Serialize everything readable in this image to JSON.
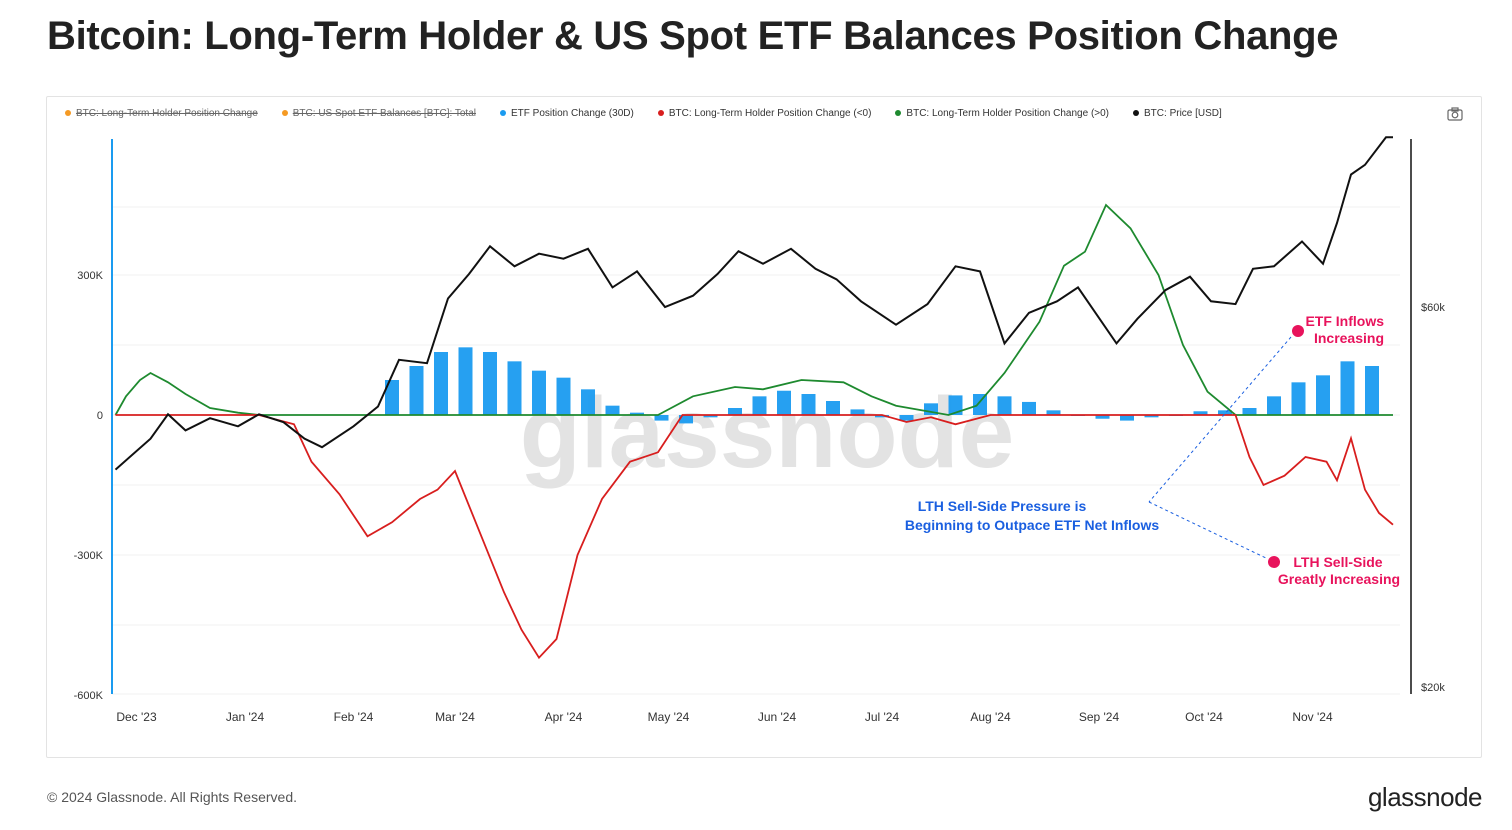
{
  "title": "Bitcoin: Long-Term Holder & US Spot ETF Balances Position Change",
  "legend": [
    {
      "label": "BTC: Long-Term Holder Position Change",
      "color": "#f59a23",
      "enabled": false
    },
    {
      "label": "BTC: US Spot ETF Balances [BTC]: Total",
      "color": "#f59a23",
      "enabled": false
    },
    {
      "label": "ETF Position Change (30D)",
      "color": "#1a9bf0",
      "enabled": true
    },
    {
      "label": "BTC: Long-Term Holder Position Change (<0)",
      "color": "#d81e1e",
      "enabled": true
    },
    {
      "label": "BTC: Long-Term Holder Position Change (>0)",
      "color": "#1e8a2f",
      "enabled": true
    },
    {
      "label": "BTC: Price [USD]",
      "color": "#111111",
      "enabled": true
    }
  ],
  "footer": "© 2024 Glassnode. All Rights Reserved.",
  "brand": "glassnode",
  "chart_data": {
    "type": "line",
    "watermark": "glassnode",
    "x_ticks": [
      "Dec '23",
      "Jan '24",
      "Feb '24",
      "Mar '24",
      "Apr '24",
      "May '24",
      "Jun '24",
      "Jul '24",
      "Aug '24",
      "Sep '24",
      "Oct '24",
      "Nov '24"
    ],
    "y_left": {
      "ticks": [
        "300K",
        "0",
        "-300K",
        "-600K"
      ],
      "tick_values": [
        300000,
        0,
        -300000,
        -600000
      ],
      "range": [
        -600000,
        600000
      ]
    },
    "y_right": {
      "ticks": [
        "$60k",
        "$20k"
      ],
      "tick_values": [
        60000,
        20000
      ],
      "scale": "log",
      "range": [
        20000,
        100000
      ]
    },
    "colors": {
      "etf": "#1a9bf0",
      "lth_neg": "#d81e1e",
      "lth_pos": "#1e8a2f",
      "price": "#111111",
      "annotation_pink": "#e8135c",
      "annotation_blue": "#1a5fe0"
    },
    "series": [
      {
        "name": "ETF Position Change (30D)",
        "axis": "left",
        "style": "bar",
        "x": [
          "2024-02-12",
          "2024-02-19",
          "2024-02-26",
          "2024-03-04",
          "2024-03-11",
          "2024-03-18",
          "2024-03-25",
          "2024-04-01",
          "2024-04-08",
          "2024-04-15",
          "2024-04-22",
          "2024-04-29",
          "2024-05-06",
          "2024-05-13",
          "2024-05-20",
          "2024-05-27",
          "2024-06-03",
          "2024-06-10",
          "2024-06-17",
          "2024-06-24",
          "2024-07-01",
          "2024-07-08",
          "2024-07-15",
          "2024-07-22",
          "2024-07-29",
          "2024-08-05",
          "2024-08-12",
          "2024-08-19",
          "2024-08-26",
          "2024-09-02",
          "2024-09-09",
          "2024-09-16",
          "2024-09-23",
          "2024-09-30",
          "2024-10-07",
          "2024-10-14",
          "2024-10-21",
          "2024-10-28",
          "2024-11-04",
          "2024-11-11",
          "2024-11-18"
        ],
        "values": [
          75000,
          105000,
          135000,
          145000,
          135000,
          115000,
          95000,
          80000,
          55000,
          20000,
          5000,
          -12000,
          -18000,
          -5000,
          15000,
          40000,
          52000,
          45000,
          30000,
          12000,
          -5000,
          -12000,
          25000,
          42000,
          45000,
          40000,
          28000,
          10000,
          0,
          -8000,
          -12000,
          -5000,
          0,
          8000,
          10000,
          15000,
          40000,
          70000,
          85000,
          115000,
          105000
        ]
      },
      {
        "name": "BTC: Long-Term Holder Position Change (<0)",
        "axis": "left",
        "style": "line",
        "x": [
          "2023-11-25",
          "2023-12-15",
          "2024-01-05",
          "2024-01-15",
          "2024-01-20",
          "2024-01-28",
          "2024-02-05",
          "2024-02-12",
          "2024-02-20",
          "2024-02-25",
          "2024-03-01",
          "2024-03-08",
          "2024-03-15",
          "2024-03-20",
          "2024-03-25",
          "2024-03-30",
          "2024-04-05",
          "2024-04-12",
          "2024-04-20",
          "2024-04-28",
          "2024-05-05",
          "2024-05-12",
          "2024-06-01",
          "2024-07-01",
          "2024-07-08",
          "2024-07-15",
          "2024-07-22",
          "2024-08-01",
          "2024-10-10",
          "2024-10-14",
          "2024-10-18",
          "2024-10-24",
          "2024-10-30",
          "2024-11-05",
          "2024-11-08",
          "2024-11-12",
          "2024-11-16",
          "2024-11-20",
          "2024-11-24"
        ],
        "values": [
          0,
          0,
          0,
          -20000,
          -100000,
          -170000,
          -260000,
          -230000,
          -180000,
          -160000,
          -120000,
          -250000,
          -380000,
          -460000,
          -520000,
          -480000,
          -300000,
          -180000,
          -100000,
          -80000,
          0,
          0,
          0,
          0,
          -15000,
          -5000,
          -20000,
          0,
          0,
          -90000,
          -150000,
          -130000,
          -90000,
          -100000,
          -140000,
          -50000,
          -160000,
          -210000,
          -235000
        ]
      },
      {
        "name": "BTC: Long-Term Holder Position Change (>0)",
        "axis": "left",
        "style": "line",
        "x": [
          "2023-11-25",
          "2023-11-28",
          "2023-12-02",
          "2023-12-05",
          "2023-12-10",
          "2023-12-15",
          "2023-12-22",
          "2023-12-30",
          "2024-01-05",
          "2024-04-28",
          "2024-05-08",
          "2024-05-20",
          "2024-05-28",
          "2024-06-08",
          "2024-06-20",
          "2024-06-28",
          "2024-07-05",
          "2024-07-20",
          "2024-07-28",
          "2024-08-05",
          "2024-08-15",
          "2024-08-22",
          "2024-08-28",
          "2024-09-03",
          "2024-09-10",
          "2024-09-18",
          "2024-09-25",
          "2024-10-02",
          "2024-10-10",
          "2024-11-24"
        ],
        "values": [
          0,
          40000,
          75000,
          90000,
          70000,
          45000,
          15000,
          5000,
          0,
          0,
          40000,
          60000,
          55000,
          75000,
          70000,
          40000,
          20000,
          0,
          20000,
          90000,
          200000,
          320000,
          350000,
          450000,
          400000,
          300000,
          150000,
          50000,
          0,
          0
        ]
      },
      {
        "name": "BTC: Price [USD]",
        "axis": "right",
        "style": "line",
        "x": [
          "2023-11-25",
          "2023-12-05",
          "2023-12-10",
          "2023-12-15",
          "2023-12-22",
          "2023-12-30",
          "2024-01-05",
          "2024-01-12",
          "2024-01-18",
          "2024-01-23",
          "2024-02-01",
          "2024-02-08",
          "2024-02-14",
          "2024-02-22",
          "2024-02-28",
          "2024-03-05",
          "2024-03-11",
          "2024-03-18",
          "2024-03-25",
          "2024-04-01",
          "2024-04-08",
          "2024-04-15",
          "2024-04-22",
          "2024-04-30",
          "2024-05-08",
          "2024-05-15",
          "2024-05-21",
          "2024-05-28",
          "2024-06-05",
          "2024-06-12",
          "2024-06-18",
          "2024-06-25",
          "2024-07-05",
          "2024-07-14",
          "2024-07-22",
          "2024-07-29",
          "2024-08-05",
          "2024-08-12",
          "2024-08-20",
          "2024-08-26",
          "2024-09-06",
          "2024-09-12",
          "2024-09-20",
          "2024-09-27",
          "2024-10-03",
          "2024-10-10",
          "2024-10-15",
          "2024-10-21",
          "2024-10-29",
          "2024-11-04",
          "2024-11-08",
          "2024-11-12",
          "2024-11-16",
          "2024-11-22",
          "2024-11-24"
        ],
        "values": [
          37500,
          41000,
          44000,
          42000,
          43500,
          42500,
          44000,
          43000,
          41000,
          40000,
          42500,
          45000,
          51500,
          51000,
          61500,
          66000,
          71500,
          67500,
          70000,
          69000,
          71000,
          63500,
          66500,
          60000,
          62000,
          66000,
          70500,
          68000,
          71000,
          67000,
          65000,
          61000,
          57000,
          60500,
          67500,
          66500,
          54000,
          59000,
          61000,
          63500,
          54000,
          58000,
          63000,
          65500,
          61000,
          60500,
          67000,
          67500,
          72500,
          68000,
          76500,
          88000,
          90500,
          98000,
          98000
        ]
      }
    ],
    "annotations": [
      {
        "text": [
          "ETF Inflows",
          "Increasing"
        ],
        "color": "pink"
      },
      {
        "text": [
          "LTH Sell-Side Pressure is",
          "Beginning to Outpace ETF Net Inflows"
        ],
        "color": "blue"
      },
      {
        "text": [
          "LTH Sell-Side",
          "Greatly Increasing"
        ],
        "color": "pink"
      }
    ]
  }
}
